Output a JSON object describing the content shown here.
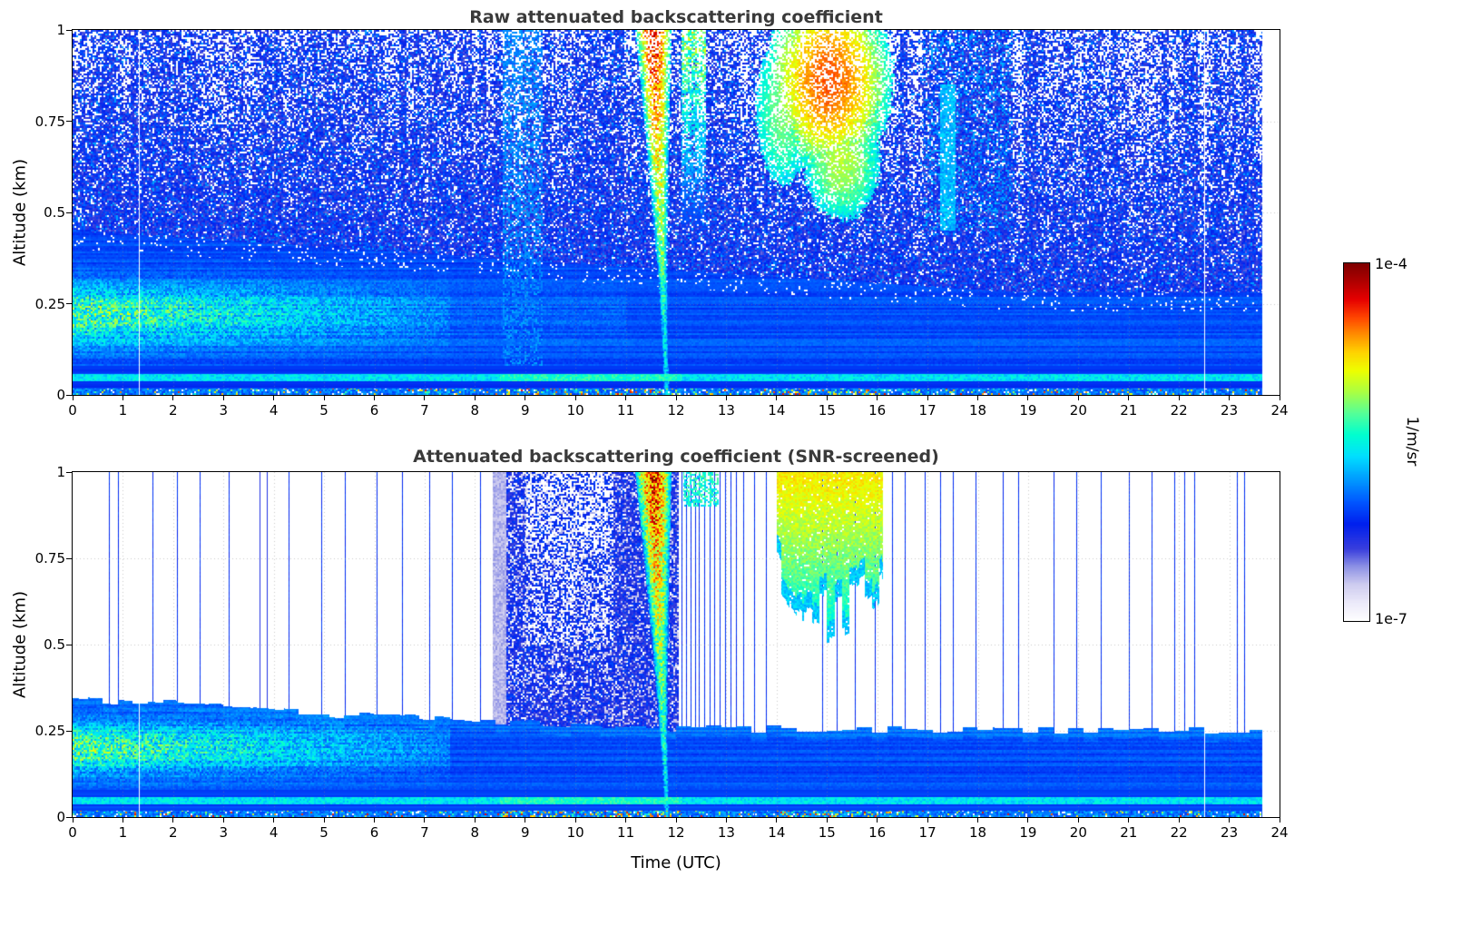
{
  "figure": {
    "background": "#ffffff",
    "colorbar": {
      "label": "1/m/sr",
      "max_label": "1e-4",
      "min_label": "1e-7",
      "stops": [
        [
          0,
          "#ffffff"
        ],
        [
          0.05,
          "#eceafa"
        ],
        [
          0.1,
          "#cfcdf0"
        ],
        [
          0.15,
          "#8f93e6"
        ],
        [
          0.2,
          "#3a3fdd"
        ],
        [
          0.27,
          "#0020ee"
        ],
        [
          0.33,
          "#0055ff"
        ],
        [
          0.4,
          "#00a0ff"
        ],
        [
          0.46,
          "#00e0ff"
        ],
        [
          0.52,
          "#00ffd0"
        ],
        [
          0.58,
          "#55ff99"
        ],
        [
          0.64,
          "#aaff44"
        ],
        [
          0.7,
          "#eeff00"
        ],
        [
          0.75,
          "#ffd500"
        ],
        [
          0.8,
          "#ff9000"
        ],
        [
          0.85,
          "#ff4400"
        ],
        [
          0.9,
          "#e60000"
        ],
        [
          0.95,
          "#b00000"
        ],
        [
          1.0,
          "#7f0000"
        ]
      ]
    }
  },
  "chart_data": [
    {
      "type": "heatmap",
      "title": "Raw attenuated backscattering coefficient",
      "xlabel": "",
      "ylabel": "Altitude (km)",
      "xlim": [
        0,
        24
      ],
      "ylim": [
        0,
        1
      ],
      "xtick_labels": [
        "0",
        "1",
        "2",
        "3",
        "4",
        "5",
        "6",
        "7",
        "8",
        "9",
        "10",
        "11",
        "12",
        "13",
        "14",
        "15",
        "16",
        "17",
        "18",
        "19",
        "20",
        "21",
        "22",
        "23",
        "24"
      ],
      "ytick_labels": [
        "0",
        "0.25",
        "0.5",
        "0.75",
        "1"
      ],
      "grid": true,
      "colorscale": {
        "min": "1e-7",
        "max": "1e-4",
        "units": "1/m/sr",
        "scale": "log"
      },
      "data_end_x": 23.65,
      "features": {
        "uniform_blue": {
          "y_top_at_x0": 0.45,
          "y_top_slope": -0.009,
          "y_top_min": 0.28,
          "base_value": 0.3
        },
        "speckle": {
          "white_fraction_max": 0.42,
          "dark_dot_prob": 0.13,
          "cyan_dot_prob": 0.04
        },
        "aerosol_layer": {
          "x_max": 7.5,
          "y_center": 0.22,
          "y_sigma": 0.055,
          "peak_add": 0.2
        },
        "surface_line": {
          "y0": 0.038,
          "y1": 0.058,
          "value": 0.42
        },
        "clutter_row": {
          "y_max": 0.018,
          "color_prob": 0.1,
          "hot_x_ranges": [
            [
              8.5,
              12.1
            ],
            [
              14.0,
              16.2
            ]
          ],
          "hot_color_prob": 0.22
        },
        "plume": {
          "x_top_center": 11.55,
          "x_ground": 11.82,
          "half_width_top": 0.36,
          "half_width_min": 0.07,
          "value_top": 0.82,
          "value_bottom": 0.42
        },
        "virga": {
          "x_center": 12.35,
          "half_width": 0.25,
          "y_min": 0.45,
          "value_max": 0.6
        },
        "cloud_lobes": [
          {
            "cx": 15.05,
            "cy": 0.86,
            "rx": 1.25,
            "ry": 0.26,
            "peak": 0.78
          },
          {
            "cx": 15.3,
            "cy": 0.64,
            "rx": 0.75,
            "ry": 0.16,
            "peak": 0.6
          },
          {
            "cx": 14.15,
            "cy": 0.78,
            "rx": 0.55,
            "ry": 0.2,
            "peak": 0.55
          }
        ],
        "faint_cloud": {
          "x_range": [
            16.9,
            18.7
          ],
          "y_min": 0.45,
          "streak_x": 17.4
        },
        "light_band": {
          "x_range": [
            8.55,
            9.35
          ]
        },
        "white_gap_lines_x": [
          1.32,
          22.5
        ]
      }
    },
    {
      "type": "heatmap",
      "title": "Attenuated backscattering coefficient (SNR-screened)",
      "xlabel": "Time (UTC)",
      "ylabel": "Altitude (km)",
      "xlim": [
        0,
        24
      ],
      "ylim": [
        0,
        1
      ],
      "xtick_labels": [
        "0",
        "1",
        "2",
        "3",
        "4",
        "5",
        "6",
        "7",
        "8",
        "9",
        "10",
        "11",
        "12",
        "13",
        "14",
        "15",
        "16",
        "17",
        "18",
        "19",
        "20",
        "21",
        "22",
        "23",
        "24"
      ],
      "ytick_labels": [
        "0",
        "0.25",
        "0.5",
        "0.75",
        "1"
      ],
      "grid": true,
      "colorscale": {
        "min": "1e-7",
        "max": "1e-4",
        "units": "1/m/sr",
        "scale": "log"
      },
      "data_end_x": 23.65,
      "features": {
        "blue_boundary": [
          [
            0,
            0.345
          ],
          [
            2,
            0.328
          ],
          [
            4,
            0.308
          ],
          [
            6,
            0.292
          ],
          [
            8.35,
            0.278
          ],
          [
            12.06,
            0.257
          ],
          [
            18,
            0.254
          ],
          [
            23.65,
            0.252
          ]
        ],
        "boundary_jitter": 0.022,
        "base_value": 0.3,
        "aerosol_layer": {
          "x_max": 7.5,
          "y_center": 0.2,
          "y_sigma": 0.05,
          "peak_add": 0.2
        },
        "surface_line": {
          "y0": 0.038,
          "y1": 0.058,
          "value": 0.42
        },
        "clutter_row": {
          "y_max": 0.018,
          "color_prob": 0.08,
          "hot_x_ranges": [
            [
              8.5,
              12.1
            ],
            [
              14.0,
              16.2
            ]
          ],
          "hot_color_prob": 0.28
        },
        "precip_column": {
          "x0": 8.35,
          "x1": 12.05,
          "solid_edge_x": 8.62,
          "speckle_core": {
            "x0": 9.0,
            "x1": 10.75,
            "y_min": 0.5
          }
        },
        "plume": {
          "x_top_center": 11.55,
          "x_ground": 11.82,
          "half_width_top": 0.36,
          "half_width_min": 0.07,
          "value_top": 0.86,
          "value_bottom": 0.42
        },
        "cloud": {
          "x0": 14.0,
          "x1": 16.12,
          "bottom_center_x": 15.1,
          "bottom_min_y": 0.585,
          "bottom_curve": 0.13,
          "roughness": 0.07,
          "peak": 0.68
        },
        "top_fragments": {
          "x0": 12.15,
          "x1": 12.85,
          "y_min": 0.9
        },
        "vertical_stripes_x": [
          0.73,
          0.9,
          1.58,
          2.08,
          2.52,
          3.1,
          4.3,
          4.95,
          5.42,
          6.05,
          6.55,
          7.1,
          7.55,
          8.1,
          12.1,
          12.19,
          12.28,
          12.37,
          12.46,
          12.56,
          12.66,
          12.76,
          12.86,
          12.97,
          13.08,
          13.2,
          13.34,
          13.56,
          13.78,
          14.9,
          15.2,
          15.55,
          15.95,
          16.3,
          16.55,
          16.95,
          17.25,
          17.5,
          17.95,
          18.5,
          18.8,
          19.5,
          19.95,
          20.45,
          21.0,
          21.45,
          21.9,
          22.1,
          22.3,
          23.15,
          23.3
        ],
        "dark_stripes_x": [
          3.72,
          3.86
        ],
        "white_gap_lines_x": [
          1.32,
          22.5
        ]
      }
    }
  ]
}
